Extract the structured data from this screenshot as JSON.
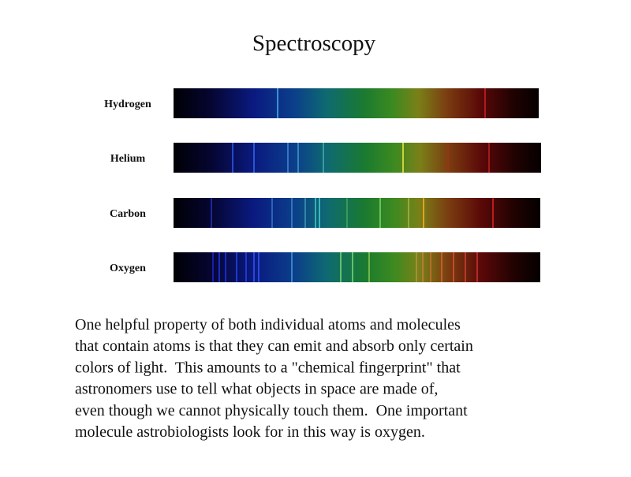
{
  "title": "Spectroscopy",
  "spectra": [
    {
      "label": "Hydrogen"
    },
    {
      "label": "Helium"
    },
    {
      "label": "Carbon"
    },
    {
      "label": "Oxygen"
    }
  ],
  "paragraph": {
    "lines": [
      "One helpful property of both individual atoms and molecules",
      "that contain atoms is that they can emit and absorb only certain",
      "colors of light.  This amounts to a \"chemical fingerprint\" that",
      "astronomers use to tell what objects in space are made of,",
      "even though we cannot physically touch them.  One important",
      "molecule astrobiologists look for in this way is oxygen."
    ]
  }
}
